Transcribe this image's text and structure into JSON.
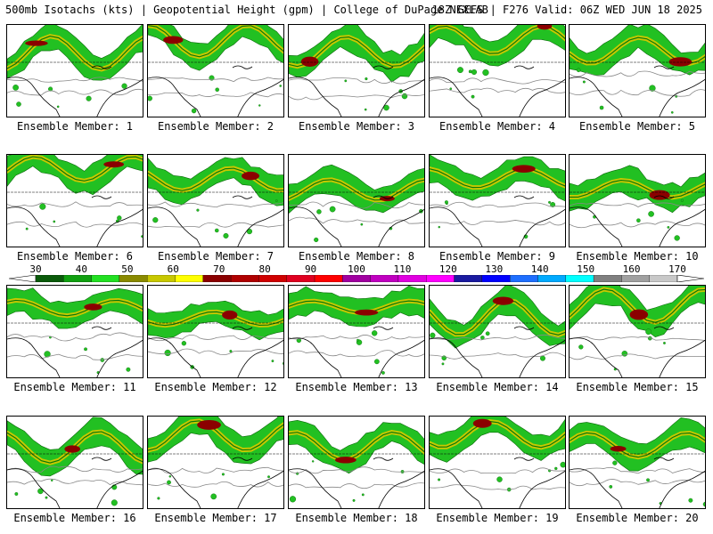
{
  "header": {
    "title_left": "500mb Isotachs (kts) | Geopotential Height (gpm) | College of DuPage NEXLAB",
    "title_right": "18Z GEFS | F276 Valid: 06Z WED JUN 18 2025"
  },
  "panels": [
    {
      "label": "Ensemble Member: 1"
    },
    {
      "label": "Ensemble Member: 2"
    },
    {
      "label": "Ensemble Member: 3"
    },
    {
      "label": "Ensemble Member: 4"
    },
    {
      "label": "Ensemble Member: 5"
    },
    {
      "label": "Ensemble Member: 6"
    },
    {
      "label": "Ensemble Member: 7"
    },
    {
      "label": "Ensemble Member: 8"
    },
    {
      "label": "Ensemble Member: 9"
    },
    {
      "label": "Ensemble Member: 10"
    },
    {
      "label": "Ensemble Member: 11"
    },
    {
      "label": "Ensemble Member: 12"
    },
    {
      "label": "Ensemble Member: 13"
    },
    {
      "label": "Ensemble Member: 14"
    },
    {
      "label": "Ensemble Member: 15"
    },
    {
      "label": "Ensemble Member: 16"
    },
    {
      "label": "Ensemble Member: 17"
    },
    {
      "label": "Ensemble Member: 18"
    },
    {
      "label": "Ensemble Member: 19"
    },
    {
      "label": "Ensemble Member: 20"
    }
  ],
  "colorbar": {
    "labels": [
      "30",
      "40",
      "50",
      "60",
      "70",
      "80",
      "90",
      "100",
      "110",
      "120",
      "130",
      "140",
      "150",
      "160",
      "170"
    ],
    "colors": [
      "#0a5a0a",
      "#10a010",
      "#22e022",
      "#8a8a00",
      "#c8c800",
      "#ffff00",
      "#8b0000",
      "#b00000",
      "#d00000",
      "#e00020",
      "#ff0000",
      "#a000a0",
      "#c000c0",
      "#e000e0",
      "#ff00ff",
      "#1a1aa0",
      "#0000ff",
      "#1e6eff",
      "#00aaff",
      "#00ffff",
      "#808080",
      "#a0a0a0",
      "#c8c8c8"
    ]
  }
}
